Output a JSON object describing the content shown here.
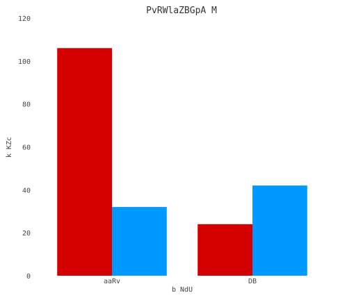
{
  "chart_data": {
    "type": "bar",
    "title": "PvRWlaZBGpA M",
    "xlabel": "b NdU",
    "ylabel": "k KZc",
    "categories": [
      "aaRv",
      "DB"
    ],
    "series": [
      {
        "values": [
          106,
          24
        ],
        "color": "#d40000"
      },
      {
        "values": [
          32,
          42
        ],
        "color": "#0099ff"
      }
    ],
    "ylim": [
      0,
      120
    ],
    "yticks": [
      0,
      20,
      40,
      60,
      80,
      100,
      120
    ],
    "grid": false,
    "legend": "none"
  }
}
